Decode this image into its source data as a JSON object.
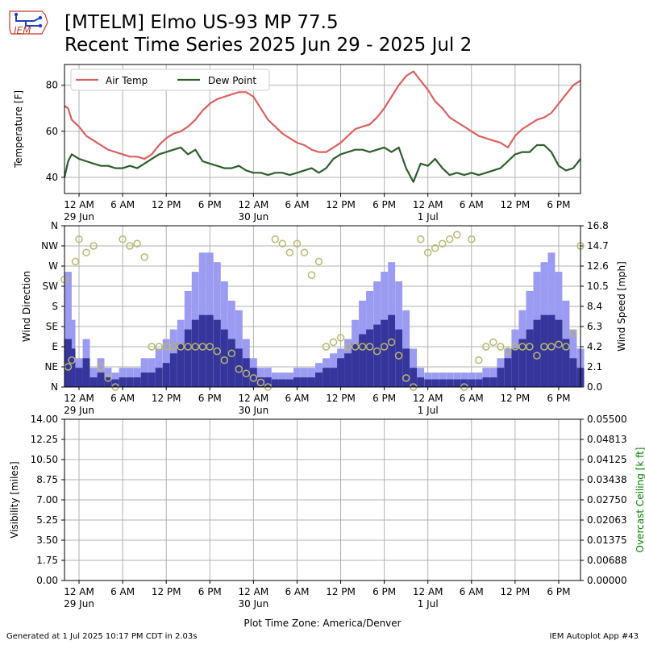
{
  "header": {
    "title_line1": "[MTELM] Elmo US-93 MP 77.5",
    "title_line2": "Recent Time Series 2025 Jun 29 - 2025 Jul 2",
    "logo_text": "IEM"
  },
  "footer": {
    "generated": "Generated at 1 Jul 2025 10:17 PM CDT in 2.03s",
    "app": "IEM Autoplot App #43"
  },
  "colors": {
    "air_temp": "#d9605f",
    "dew_point": "#2e5e2f",
    "gust": "#9b9bf2",
    "speed": "#35359b",
    "direction": "#b7b76f",
    "ceiling_label": "#008000",
    "grid": "#b0b0b0"
  },
  "chart_data": [
    {
      "type": "line",
      "panel": "temperature",
      "ylabel": "Temperature [F]",
      "ylim": [
        33,
        89
      ],
      "yticks": [
        40,
        60,
        80
      ],
      "time_axis": {
        "start": "2025-06-28 22:00",
        "end": "2025-07-01 21:00",
        "tick_labels": [
          "12 AM",
          "6 AM",
          "12 PM",
          "6 PM",
          "12 AM",
          "6 AM",
          "12 PM",
          "6 PM",
          "12 AM",
          "6 AM",
          "12 PM",
          "6 PM"
        ],
        "date_labels": [
          "29 Jun",
          "30 Jun",
          "1 Jul"
        ]
      },
      "legend": {
        "placement": "top-left"
      },
      "series": [
        {
          "name": "Air Temp",
          "hours": [
            0,
            0.5,
            1,
            2,
            3,
            4,
            5,
            6,
            7,
            8,
            9,
            10,
            11,
            12,
            13,
            14,
            15,
            16,
            17,
            18,
            19,
            20,
            21,
            22,
            23,
            24,
            25,
            26,
            27,
            28,
            29,
            30,
            31,
            32,
            33,
            34,
            35,
            36,
            37,
            38,
            39,
            40,
            41,
            42,
            43,
            44,
            45,
            46,
            47,
            48,
            49,
            50,
            51,
            52,
            53,
            54,
            55,
            56,
            57,
            58,
            59,
            60,
            61,
            62,
            63,
            64,
            65,
            66,
            67,
            68,
            69,
            70,
            71
          ],
          "values": [
            71,
            70,
            65,
            62,
            58,
            56,
            54,
            52,
            51,
            50,
            49,
            49,
            48,
            50,
            54,
            57,
            59,
            60,
            62,
            65,
            69,
            72,
            74,
            75,
            76,
            77,
            77,
            75,
            70,
            65,
            62,
            59,
            57,
            55,
            54,
            52,
            51,
            51,
            53,
            55,
            58,
            61,
            62,
            63,
            66,
            70,
            75,
            80,
            84,
            86,
            82,
            78,
            73,
            70,
            66,
            64,
            62,
            60,
            58,
            57,
            56,
            55,
            53,
            58,
            61,
            63,
            65,
            66,
            68,
            72,
            76,
            80,
            82
          ]
        },
        {
          "name": "Dew Point",
          "hours": [
            0,
            0.5,
            1,
            2,
            3,
            4,
            5,
            6,
            7,
            8,
            9,
            10,
            11,
            12,
            13,
            14,
            15,
            16,
            17,
            18,
            19,
            20,
            21,
            22,
            23,
            24,
            25,
            26,
            27,
            28,
            29,
            30,
            31,
            32,
            33,
            34,
            35,
            36,
            37,
            38,
            39,
            40,
            41,
            42,
            43,
            44,
            45,
            46,
            47,
            48,
            49,
            50,
            51,
            52,
            53,
            54,
            55,
            56,
            57,
            58,
            59,
            60,
            61,
            62,
            63,
            64,
            65,
            66,
            67,
            68,
            69,
            70,
            71
          ],
          "values": [
            40,
            47,
            50,
            48,
            47,
            46,
            45,
            45,
            44,
            44,
            45,
            44,
            46,
            48,
            50,
            51,
            52,
            53,
            50,
            52,
            47,
            46,
            45,
            44,
            44,
            45,
            43,
            42,
            42,
            41,
            42,
            42,
            41,
            42,
            43,
            44,
            42,
            44,
            48,
            50,
            51,
            52,
            52,
            51,
            52,
            53,
            51,
            53,
            44,
            38,
            46,
            45,
            48,
            44,
            41,
            42,
            41,
            42,
            41,
            42,
            43,
            44,
            47,
            50,
            51,
            51,
            54,
            54,
            51,
            45,
            43,
            44,
            48
          ]
        }
      ]
    },
    {
      "type": "bar",
      "panel": "wind",
      "ylabel": "Wind Direction",
      "y2label": "Wind Speed [mph]",
      "direction_ticks": [
        "N",
        "NE",
        "E",
        "SE",
        "S",
        "SW",
        "W",
        "NW",
        "N"
      ],
      "speed_ticks": [
        "0.0",
        "2.1",
        "4.2",
        "6.3",
        "8.4",
        "10.5",
        "12.6",
        "14.7",
        "16.8"
      ],
      "speed_lim": [
        0,
        16.8
      ],
      "hours": [
        0,
        1,
        2,
        3,
        4,
        5,
        6,
        7,
        8,
        9,
        10,
        11,
        12,
        13,
        14,
        15,
        16,
        17,
        18,
        19,
        20,
        21,
        22,
        23,
        24,
        25,
        26,
        27,
        28,
        29,
        30,
        31,
        32,
        33,
        34,
        35,
        36,
        37,
        38,
        39,
        40,
        41,
        42,
        43,
        44,
        45,
        46,
        47,
        48,
        49,
        50,
        51,
        52,
        53,
        54,
        55,
        56,
        57,
        58,
        59,
        60,
        61,
        62,
        63,
        64,
        65,
        66,
        67,
        68,
        69,
        70,
        71
      ],
      "series": [
        {
          "name": "gust",
          "values": [
            12,
            7,
            3,
            5,
            2,
            3,
            2,
            1.5,
            2,
            2,
            2,
            3,
            3,
            4,
            5,
            6,
            7,
            10,
            12,
            14,
            14,
            13,
            11,
            9,
            8,
            5,
            3,
            2,
            2,
            1.5,
            1.5,
            1.5,
            2,
            2,
            2,
            2.5,
            3,
            3.5,
            4,
            5,
            7,
            9,
            10,
            11,
            12,
            13,
            11,
            8,
            4,
            2,
            1.5,
            1.5,
            1.5,
            1.5,
            1.5,
            1.5,
            1.5,
            1.5,
            2,
            2,
            3,
            4,
            6,
            8,
            10,
            12,
            13,
            14,
            12,
            9,
            6,
            4
          ]
        },
        {
          "name": "speed",
          "values": [
            5,
            4,
            2,
            3,
            1,
            1.5,
            1,
            0.8,
            1,
            1,
            1,
            1.5,
            1.5,
            2,
            2.5,
            3.5,
            4.5,
            6,
            7,
            7.5,
            7.5,
            7,
            6,
            5,
            4,
            3,
            2,
            1,
            1,
            0.8,
            0.8,
            0.8,
            1,
            1,
            1,
            1.5,
            2,
            2,
            3,
            3.5,
            4.5,
            5.5,
            6,
            6.5,
            7,
            7.5,
            6,
            4,
            2,
            1,
            0.8,
            0.8,
            0.8,
            0.8,
            0.8,
            0.8,
            0.8,
            0.8,
            1,
            1,
            2,
            3,
            4,
            5,
            6,
            7,
            7.5,
            7.5,
            7,
            5,
            3,
            2
          ]
        }
      ],
      "direction": {
        "name": "direction",
        "hours": [
          0,
          0.5,
          1,
          1.5,
          2,
          3,
          4,
          5,
          6,
          7,
          8,
          9,
          10,
          11,
          12,
          13,
          14,
          15,
          16,
          17,
          18,
          19,
          20,
          21,
          22,
          23,
          24,
          25,
          26,
          27,
          28,
          29,
          30,
          31,
          32,
          33,
          34,
          35,
          36,
          37,
          38,
          39,
          40,
          41,
          42,
          43,
          44,
          45,
          46,
          47,
          48,
          49,
          50,
          51,
          52,
          53,
          54,
          55,
          56,
          57,
          58,
          59,
          60,
          61,
          62,
          63,
          64,
          65,
          66,
          67,
          68,
          69,
          70,
          71
        ],
        "degrees": [
          240,
          45,
          60,
          280,
          330,
          300,
          315,
          45,
          20,
          0,
          330,
          315,
          320,
          290,
          90,
          90,
          90,
          90,
          90,
          90,
          90,
          90,
          90,
          80,
          60,
          75,
          40,
          30,
          20,
          10,
          0,
          330,
          320,
          300,
          320,
          300,
          250,
          280,
          90,
          100,
          110,
          90,
          90,
          90,
          90,
          80,
          90,
          100,
          70,
          20,
          0,
          330,
          300,
          310,
          320,
          330,
          340,
          0,
          330,
          60,
          90,
          100,
          90,
          80,
          90,
          90,
          90,
          70,
          90,
          90,
          95,
          90,
          120,
          315
        ]
      }
    },
    {
      "type": "line",
      "panel": "visibility",
      "ylabel": "Visibility [miles]",
      "y2label": "Overcast Ceiling [k ft]",
      "ylim": [
        0,
        14
      ],
      "y2lim": [
        0,
        0.055
      ],
      "yticks": [
        "0.00",
        "1.75",
        "3.50",
        "5.25",
        "7.00",
        "8.75",
        "10.50",
        "12.25",
        "14.00"
      ],
      "y2ticks": [
        "0.00000",
        "0.00688",
        "0.01375",
        "0.02063",
        "0.02750",
        "0.03438",
        "0.04125",
        "0.04813",
        "0.05500"
      ],
      "xlabel": "Plot Time Zone: America/Denver",
      "series": []
    }
  ]
}
